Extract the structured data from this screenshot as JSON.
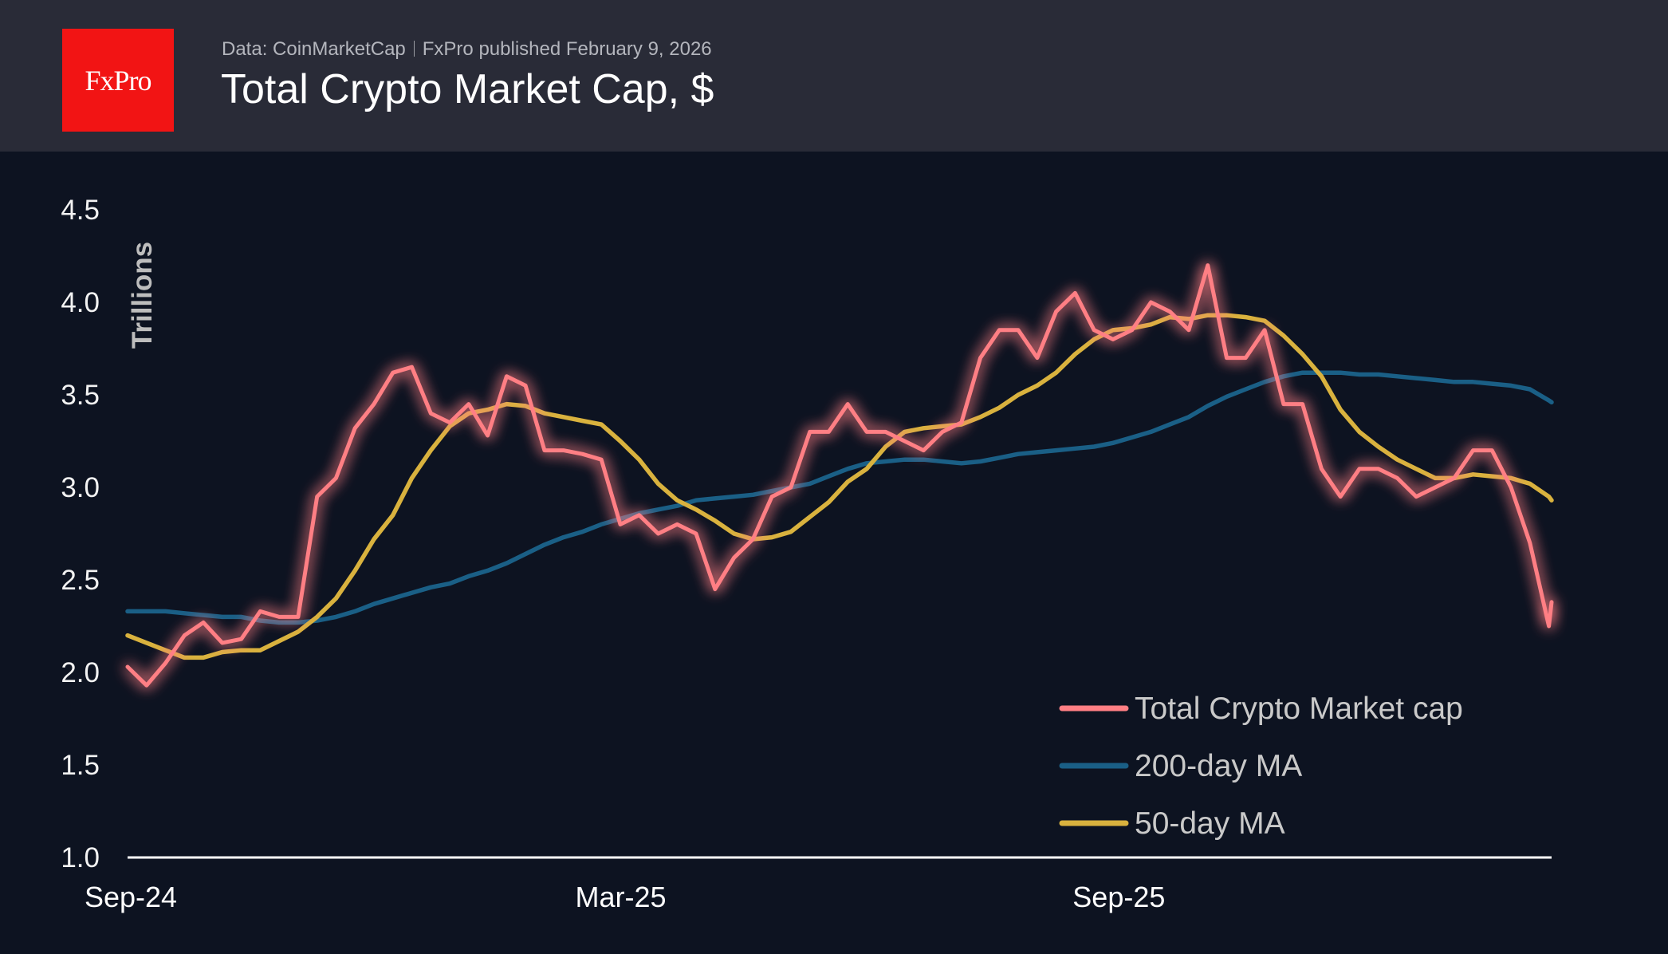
{
  "header": {
    "logo_text": "FxPro",
    "source": "Data: CoinMarketCap",
    "published": "FxPro published February 9, 2026",
    "title": "Total Crypto Market Cap, $"
  },
  "colors": {
    "header_bg": "#292b37",
    "background": "#0d1321",
    "logo_bg": "#f21414",
    "market_cap": "#ff7f84",
    "ma200": "#1a5f86",
    "ma50": "#d9b23e"
  },
  "chart_data": {
    "type": "line",
    "title": "Total Crypto Market Cap, $",
    "ylabel": "Trillions",
    "xlabel": "",
    "ylim": [
      1.0,
      4.5
    ],
    "yticks": [
      "1.0",
      "1.5",
      "2.0",
      "2.5",
      "3.0",
      "3.5",
      "4.0",
      "4.5"
    ],
    "xticks": [
      {
        "label": "Sep-24",
        "date": "2024-09-01"
      },
      {
        "label": "Mar-25",
        "date": "2025-03-01"
      },
      {
        "label": "Sep-25",
        "date": "2025-09-01"
      }
    ],
    "xlim": [
      "2024-09-01",
      "2026-02-09"
    ],
    "grid": false,
    "legend_position": "bottom-right",
    "x": [
      "2024-09-01",
      "2024-09-08",
      "2024-09-15",
      "2024-09-22",
      "2024-09-29",
      "2024-10-06",
      "2024-10-13",
      "2024-10-20",
      "2024-10-27",
      "2024-11-03",
      "2024-11-10",
      "2024-11-17",
      "2024-11-24",
      "2024-12-01",
      "2024-12-08",
      "2024-12-15",
      "2024-12-22",
      "2024-12-29",
      "2025-01-05",
      "2025-01-12",
      "2025-01-19",
      "2025-01-26",
      "2025-02-02",
      "2025-02-09",
      "2025-02-16",
      "2025-02-23",
      "2025-03-02",
      "2025-03-09",
      "2025-03-16",
      "2025-03-23",
      "2025-03-30",
      "2025-04-06",
      "2025-04-13",
      "2025-04-20",
      "2025-04-27",
      "2025-05-04",
      "2025-05-11",
      "2025-05-18",
      "2025-05-25",
      "2025-06-01",
      "2025-06-08",
      "2025-06-15",
      "2025-06-22",
      "2025-06-29",
      "2025-07-06",
      "2025-07-13",
      "2025-07-20",
      "2025-07-27",
      "2025-08-03",
      "2025-08-10",
      "2025-08-17",
      "2025-08-24",
      "2025-08-31",
      "2025-09-07",
      "2025-09-14",
      "2025-09-21",
      "2025-09-28",
      "2025-10-05",
      "2025-10-12",
      "2025-10-19",
      "2025-10-26",
      "2025-11-02",
      "2025-11-09",
      "2025-11-16",
      "2025-11-23",
      "2025-11-30",
      "2025-12-07",
      "2025-12-14",
      "2025-12-21",
      "2025-12-28",
      "2026-01-04",
      "2026-01-11",
      "2026-01-18",
      "2026-01-25",
      "2026-02-01",
      "2026-02-08",
      "2026-02-09"
    ],
    "series": [
      {
        "name": "Total Crypto Market cap",
        "key": "market_cap",
        "values": [
          2.03,
          1.93,
          2.05,
          2.2,
          2.27,
          2.16,
          2.18,
          2.33,
          2.3,
          2.3,
          2.95,
          3.05,
          3.32,
          3.45,
          3.62,
          3.65,
          3.4,
          3.35,
          3.45,
          3.28,
          3.6,
          3.55,
          3.2,
          3.2,
          3.18,
          3.15,
          2.8,
          2.85,
          2.75,
          2.8,
          2.75,
          2.45,
          2.62,
          2.72,
          2.95,
          3.0,
          3.3,
          3.3,
          3.45,
          3.3,
          3.3,
          3.25,
          3.2,
          3.3,
          3.35,
          3.7,
          3.85,
          3.85,
          3.7,
          3.95,
          4.05,
          3.85,
          3.8,
          3.85,
          4.0,
          3.95,
          3.85,
          4.2,
          3.7,
          3.7,
          3.85,
          3.45,
          3.45,
          3.1,
          2.95,
          3.1,
          3.1,
          3.05,
          2.95,
          3.0,
          3.05,
          3.2,
          3.2,
          3.0,
          2.7,
          2.25,
          2.38
        ]
      },
      {
        "name": "200-day MA",
        "key": "ma200",
        "values": [
          2.33,
          2.33,
          2.33,
          2.32,
          2.31,
          2.3,
          2.3,
          2.28,
          2.27,
          2.27,
          2.28,
          2.3,
          2.33,
          2.37,
          2.4,
          2.43,
          2.46,
          2.48,
          2.52,
          2.55,
          2.59,
          2.64,
          2.69,
          2.73,
          2.76,
          2.8,
          2.83,
          2.86,
          2.88,
          2.9,
          2.93,
          2.94,
          2.95,
          2.96,
          2.98,
          3.0,
          3.02,
          3.06,
          3.1,
          3.13,
          3.14,
          3.15,
          3.15,
          3.14,
          3.13,
          3.14,
          3.16,
          3.18,
          3.19,
          3.2,
          3.21,
          3.22,
          3.24,
          3.27,
          3.3,
          3.34,
          3.38,
          3.44,
          3.49,
          3.53,
          3.57,
          3.6,
          3.62,
          3.62,
          3.62,
          3.61,
          3.61,
          3.6,
          3.59,
          3.58,
          3.57,
          3.57,
          3.56,
          3.55,
          3.53,
          3.47,
          3.46
        ]
      },
      {
        "name": "50-day MA",
        "key": "ma50",
        "values": [
          2.2,
          2.16,
          2.12,
          2.08,
          2.08,
          2.11,
          2.12,
          2.12,
          2.17,
          2.22,
          2.3,
          2.4,
          2.55,
          2.72,
          2.85,
          3.05,
          3.2,
          3.33,
          3.4,
          3.42,
          3.45,
          3.44,
          3.4,
          3.38,
          3.36,
          3.34,
          3.25,
          3.15,
          3.02,
          2.93,
          2.88,
          2.82,
          2.75,
          2.72,
          2.73,
          2.76,
          2.84,
          2.92,
          3.03,
          3.1,
          3.22,
          3.3,
          3.32,
          3.33,
          3.34,
          3.38,
          3.43,
          3.5,
          3.55,
          3.62,
          3.72,
          3.8,
          3.85,
          3.86,
          3.88,
          3.92,
          3.91,
          3.93,
          3.93,
          3.92,
          3.9,
          3.82,
          3.72,
          3.6,
          3.42,
          3.3,
          3.22,
          3.15,
          3.1,
          3.05,
          3.05,
          3.07,
          3.06,
          3.05,
          3.02,
          2.95,
          2.93
        ]
      }
    ]
  }
}
